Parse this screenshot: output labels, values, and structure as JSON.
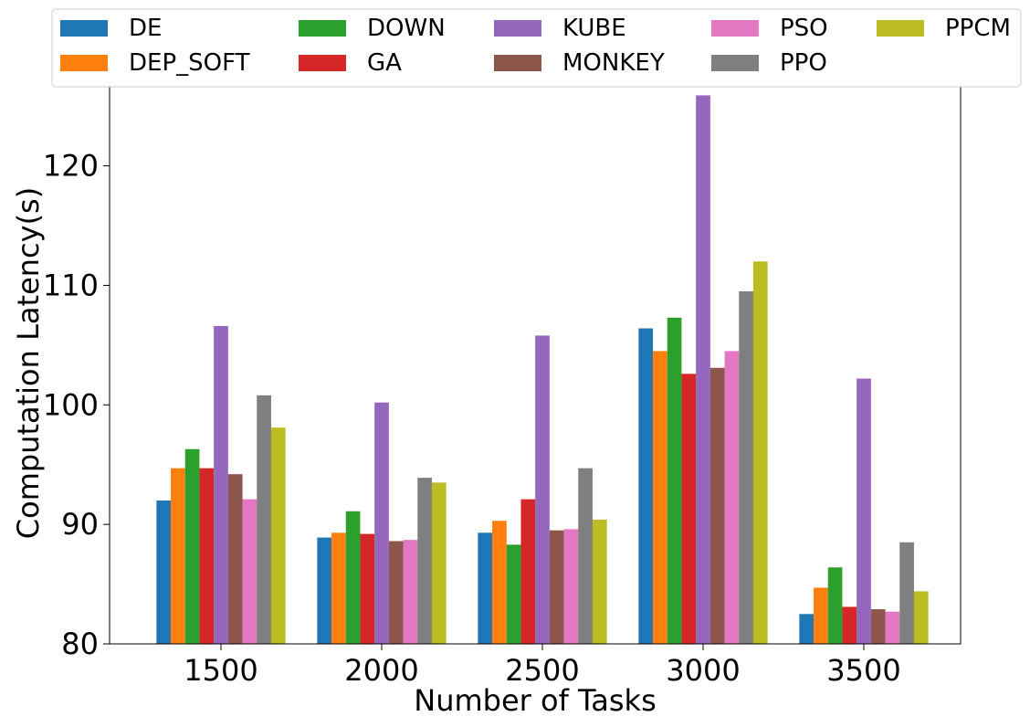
{
  "chart_data": {
    "type": "bar",
    "title": "",
    "xlabel": "Number of Tasks",
    "ylabel": "Computation Latency(s)",
    "categories": [
      "1500",
      "2000",
      "2500",
      "3000",
      "3500"
    ],
    "ylim": [
      80,
      127
    ],
    "yticks": [
      80,
      90,
      100,
      110,
      120
    ],
    "grid": false,
    "legend_position": "top",
    "series": [
      {
        "name": "DE",
        "color": "#1f77b4",
        "values": [
          92.0,
          88.9,
          89.3,
          106.4,
          82.5
        ]
      },
      {
        "name": "DEP_SOFT",
        "color": "#ff7f0e",
        "values": [
          94.7,
          89.3,
          90.3,
          104.5,
          84.7
        ]
      },
      {
        "name": "DOWN",
        "color": "#2ca02c",
        "values": [
          96.3,
          91.1,
          88.3,
          107.3,
          86.4
        ]
      },
      {
        "name": "GA",
        "color": "#d62728",
        "values": [
          94.7,
          89.2,
          92.1,
          102.6,
          83.1
        ]
      },
      {
        "name": "KUBE",
        "color": "#9467bd",
        "values": [
          106.6,
          100.2,
          105.8,
          125.9,
          102.2
        ]
      },
      {
        "name": "MONKEY",
        "color": "#8c564b",
        "values": [
          94.2,
          88.6,
          89.5,
          103.1,
          82.9
        ]
      },
      {
        "name": "PSO",
        "color": "#e377c2",
        "values": [
          92.1,
          88.7,
          89.6,
          104.5,
          82.7
        ]
      },
      {
        "name": "PPO",
        "color": "#7f7f7f",
        "values": [
          100.8,
          93.9,
          94.7,
          109.5,
          88.5
        ]
      },
      {
        "name": "PPCM",
        "color": "#bcbd22",
        "values": [
          98.1,
          93.5,
          90.4,
          112.0,
          84.4
        ]
      }
    ]
  }
}
